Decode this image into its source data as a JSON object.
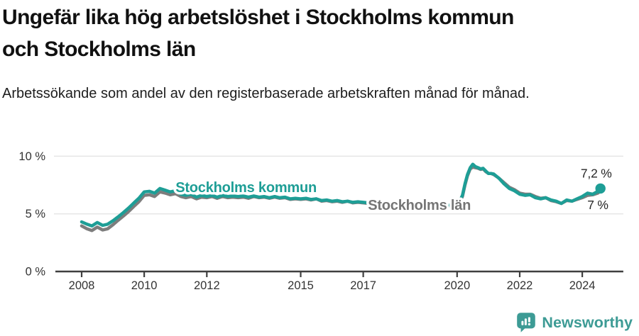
{
  "chart_data": {
    "type": "line",
    "title": "Ungefär lika hög arbetslöshet i Stockholms kommun och Stockholms län",
    "title_lines": [
      "Ungefär lika hög arbetslöshet i Stockholms kommun",
      "och Stockholms län"
    ],
    "subtitle": "Arbetssökande som andel av den registerbaserade arbetskraften månad för månad.",
    "xlabel": "",
    "ylabel": "",
    "x_range": [
      2007.16,
      2025.31
    ],
    "ylim": [
      0,
      11.5
    ],
    "grid": "horizontal-only",
    "legend": "inline-labels",
    "x_ticks": [
      {
        "value": 2008,
        "label": "2008"
      },
      {
        "value": 2010,
        "label": "2010"
      },
      {
        "value": 2012,
        "label": "2012"
      },
      {
        "value": 2015,
        "label": "2015"
      },
      {
        "value": 2017,
        "label": "2017"
      },
      {
        "value": 2020,
        "label": "2020"
      },
      {
        "value": 2022,
        "label": "2022"
      },
      {
        "value": 2024,
        "label": "2024"
      }
    ],
    "y_ticks": [
      {
        "value": 10,
        "label": "10 %"
      },
      {
        "value": 5,
        "label": "5 %"
      },
      {
        "value": 0,
        "label": "0 %"
      }
    ],
    "series": [
      {
        "name": "Stockholms län",
        "color": "#7d7d7d",
        "stroke_width": 4.5,
        "end_dot": false,
        "end_value_label": "7 %",
        "points": [
          [
            2008.0,
            3.95
          ],
          [
            2008.17,
            3.7
          ],
          [
            2008.33,
            3.55
          ],
          [
            2008.5,
            3.85
          ],
          [
            2008.67,
            3.6
          ],
          [
            2008.83,
            3.7
          ],
          [
            2009.0,
            4.05
          ],
          [
            2009.17,
            4.45
          ],
          [
            2009.33,
            4.8
          ],
          [
            2009.5,
            5.2
          ],
          [
            2009.67,
            5.65
          ],
          [
            2009.83,
            6.05
          ],
          [
            2010.0,
            6.6
          ],
          [
            2010.17,
            6.65
          ],
          [
            2010.33,
            6.5
          ],
          [
            2010.5,
            6.9
          ],
          [
            2010.67,
            6.8
          ],
          [
            2010.83,
            6.65
          ],
          [
            2011.0,
            6.75
          ],
          [
            2011.17,
            6.5
          ],
          [
            2011.33,
            6.4
          ],
          [
            2011.5,
            6.5
          ],
          [
            2011.67,
            6.3
          ],
          [
            2011.83,
            6.45
          ],
          [
            2012.0,
            6.4
          ],
          [
            2012.17,
            6.5
          ],
          [
            2012.33,
            6.35
          ],
          [
            2012.5,
            6.5
          ],
          [
            2012.67,
            6.4
          ],
          [
            2012.83,
            6.45
          ],
          [
            2013.0,
            6.4
          ],
          [
            2013.17,
            6.45
          ],
          [
            2013.33,
            6.35
          ],
          [
            2013.5,
            6.5
          ],
          [
            2013.67,
            6.4
          ],
          [
            2013.83,
            6.45
          ],
          [
            2014.0,
            6.35
          ],
          [
            2014.17,
            6.45
          ],
          [
            2014.33,
            6.35
          ],
          [
            2014.5,
            6.4
          ],
          [
            2014.67,
            6.25
          ],
          [
            2014.83,
            6.3
          ],
          [
            2015.0,
            6.25
          ],
          [
            2015.17,
            6.3
          ],
          [
            2015.33,
            6.2
          ],
          [
            2015.5,
            6.3
          ],
          [
            2015.67,
            6.1
          ],
          [
            2015.83,
            6.15
          ],
          [
            2016.0,
            6.05
          ],
          [
            2016.17,
            6.1
          ],
          [
            2016.33,
            6.0
          ],
          [
            2016.5,
            6.1
          ],
          [
            2016.67,
            5.95
          ],
          [
            2016.83,
            6.0
          ],
          [
            2017.0,
            5.95
          ],
          [
            2017.17,
            5.9
          ],
          [
            2017.33,
            5.85
          ],
          [
            2017.5,
            5.75
          ],
          [
            2017.67,
            5.7
          ],
          [
            2017.83,
            5.65
          ],
          [
            2018.0,
            5.6
          ],
          [
            2018.17,
            5.55
          ],
          [
            2018.33,
            5.5
          ],
          [
            2018.5,
            5.45
          ],
          [
            2018.67,
            5.45
          ],
          [
            2018.83,
            5.4
          ],
          [
            2019.0,
            5.45
          ],
          [
            2019.17,
            5.5
          ],
          [
            2019.33,
            5.55
          ],
          [
            2019.5,
            5.6
          ],
          [
            2019.67,
            5.65
          ],
          [
            2019.83,
            5.75
          ],
          [
            2020.0,
            5.85
          ],
          [
            2020.08,
            6.05
          ],
          [
            2020.17,
            6.5
          ],
          [
            2020.25,
            7.5
          ],
          [
            2020.33,
            8.3
          ],
          [
            2020.42,
            8.9
          ],
          [
            2020.5,
            9.05
          ],
          [
            2020.58,
            9.0
          ],
          [
            2020.67,
            8.95
          ],
          [
            2020.75,
            8.85
          ],
          [
            2020.83,
            8.9
          ],
          [
            2020.92,
            8.65
          ],
          [
            2021.0,
            8.5
          ],
          [
            2021.08,
            8.5
          ],
          [
            2021.17,
            8.4
          ],
          [
            2021.33,
            8.1
          ],
          [
            2021.5,
            7.7
          ],
          [
            2021.67,
            7.3
          ],
          [
            2021.83,
            7.1
          ],
          [
            2022.0,
            6.8
          ],
          [
            2022.17,
            6.7
          ],
          [
            2022.33,
            6.7
          ],
          [
            2022.5,
            6.5
          ],
          [
            2022.67,
            6.35
          ],
          [
            2022.83,
            6.4
          ],
          [
            2023.0,
            6.15
          ],
          [
            2023.17,
            6.05
          ],
          [
            2023.33,
            5.9
          ],
          [
            2023.5,
            6.15
          ],
          [
            2023.67,
            6.1
          ],
          [
            2023.83,
            6.25
          ],
          [
            2024.0,
            6.4
          ],
          [
            2024.17,
            6.6
          ],
          [
            2024.33,
            6.65
          ],
          [
            2024.5,
            6.8
          ],
          [
            2024.58,
            7.0
          ]
        ]
      },
      {
        "name": "Stockholms kommun",
        "color": "#1e9e96",
        "stroke_width": 4.5,
        "end_dot": true,
        "end_dot_radius": 7.2,
        "end_value_label": "7,2 %",
        "points": [
          [
            2008.0,
            4.3
          ],
          [
            2008.17,
            4.1
          ],
          [
            2008.33,
            3.95
          ],
          [
            2008.5,
            4.25
          ],
          [
            2008.67,
            4.0
          ],
          [
            2008.83,
            4.1
          ],
          [
            2009.0,
            4.4
          ],
          [
            2009.17,
            4.75
          ],
          [
            2009.33,
            5.1
          ],
          [
            2009.5,
            5.5
          ],
          [
            2009.67,
            5.95
          ],
          [
            2009.83,
            6.35
          ],
          [
            2010.0,
            6.9
          ],
          [
            2010.17,
            6.95
          ],
          [
            2010.33,
            6.8
          ],
          [
            2010.5,
            7.2
          ],
          [
            2010.67,
            7.05
          ],
          [
            2010.83,
            6.9
          ],
          [
            2011.0,
            7.0
          ],
          [
            2011.17,
            6.7
          ],
          [
            2011.33,
            6.6
          ],
          [
            2011.5,
            6.7
          ],
          [
            2011.67,
            6.45
          ],
          [
            2011.83,
            6.6
          ],
          [
            2012.0,
            6.5
          ],
          [
            2012.17,
            6.6
          ],
          [
            2012.33,
            6.45
          ],
          [
            2012.5,
            6.6
          ],
          [
            2012.67,
            6.5
          ],
          [
            2012.83,
            6.55
          ],
          [
            2013.0,
            6.5
          ],
          [
            2013.17,
            6.55
          ],
          [
            2013.33,
            6.45
          ],
          [
            2013.5,
            6.55
          ],
          [
            2013.67,
            6.45
          ],
          [
            2013.83,
            6.5
          ],
          [
            2014.0,
            6.4
          ],
          [
            2014.17,
            6.5
          ],
          [
            2014.33,
            6.4
          ],
          [
            2014.5,
            6.45
          ],
          [
            2014.67,
            6.3
          ],
          [
            2014.83,
            6.35
          ],
          [
            2015.0,
            6.3
          ],
          [
            2015.17,
            6.35
          ],
          [
            2015.33,
            6.25
          ],
          [
            2015.5,
            6.3
          ],
          [
            2015.67,
            6.15
          ],
          [
            2015.83,
            6.2
          ],
          [
            2016.0,
            6.1
          ],
          [
            2016.17,
            6.15
          ],
          [
            2016.33,
            6.05
          ],
          [
            2016.5,
            6.1
          ],
          [
            2016.67,
            6.0
          ],
          [
            2016.83,
            6.05
          ],
          [
            2017.0,
            6.0
          ],
          [
            2017.17,
            5.95
          ],
          [
            2017.33,
            5.9
          ],
          [
            2017.5,
            5.8
          ],
          [
            2017.67,
            5.75
          ],
          [
            2017.83,
            5.7
          ],
          [
            2018.0,
            5.65
          ],
          [
            2018.17,
            5.6
          ],
          [
            2018.33,
            5.55
          ],
          [
            2018.5,
            5.5
          ],
          [
            2018.67,
            5.5
          ],
          [
            2018.83,
            5.45
          ],
          [
            2019.0,
            5.5
          ],
          [
            2019.17,
            5.55
          ],
          [
            2019.33,
            5.6
          ],
          [
            2019.5,
            5.65
          ],
          [
            2019.67,
            5.7
          ],
          [
            2019.83,
            5.8
          ],
          [
            2020.0,
            5.9
          ],
          [
            2020.08,
            6.1
          ],
          [
            2020.17,
            6.6
          ],
          [
            2020.25,
            7.6
          ],
          [
            2020.33,
            8.4
          ],
          [
            2020.42,
            9.0
          ],
          [
            2020.5,
            9.3
          ],
          [
            2020.58,
            9.1
          ],
          [
            2020.67,
            9.0
          ],
          [
            2020.75,
            8.9
          ],
          [
            2020.83,
            8.95
          ],
          [
            2020.92,
            8.7
          ],
          [
            2021.0,
            8.5
          ],
          [
            2021.08,
            8.5
          ],
          [
            2021.17,
            8.45
          ],
          [
            2021.33,
            8.1
          ],
          [
            2021.5,
            7.6
          ],
          [
            2021.67,
            7.2
          ],
          [
            2021.83,
            7.0
          ],
          [
            2022.0,
            6.7
          ],
          [
            2022.17,
            6.6
          ],
          [
            2022.33,
            6.65
          ],
          [
            2022.5,
            6.4
          ],
          [
            2022.67,
            6.3
          ],
          [
            2022.83,
            6.4
          ],
          [
            2023.0,
            6.2
          ],
          [
            2023.17,
            6.1
          ],
          [
            2023.33,
            5.9
          ],
          [
            2023.5,
            6.2
          ],
          [
            2023.67,
            6.1
          ],
          [
            2023.83,
            6.3
          ],
          [
            2024.0,
            6.5
          ],
          [
            2024.17,
            6.8
          ],
          [
            2024.33,
            6.7
          ],
          [
            2024.5,
            6.95
          ],
          [
            2024.58,
            7.2
          ]
        ]
      }
    ],
    "annotations": [
      {
        "text": "Stockholms kommun",
        "x": 2011.0,
        "y": 6.88,
        "color": "#1e9e96",
        "size": 20,
        "weight": 700,
        "halo": true
      },
      {
        "text": "Stockholms län",
        "x": 2017.15,
        "y": 5.35,
        "color": "#757575",
        "size": 20,
        "weight": 700,
        "halo": true
      },
      {
        "text": "7,2 %",
        "x": 2023.95,
        "y": 8.15,
        "color": "#272727",
        "size": 17.5,
        "weight": 400,
        "halo": false
      },
      {
        "text": "7 %",
        "x": 2024.16,
        "y": 5.42,
        "color": "#272727",
        "size": 17.5,
        "weight": 400,
        "halo": false
      }
    ],
    "style": {
      "gridline_color": "#e4e4e4",
      "axis_color": "#3f3f3f",
      "tick_label_color": "#333333"
    }
  },
  "footer": {
    "brand": "Newsworthy",
    "brand_color": "#3d9b95"
  }
}
